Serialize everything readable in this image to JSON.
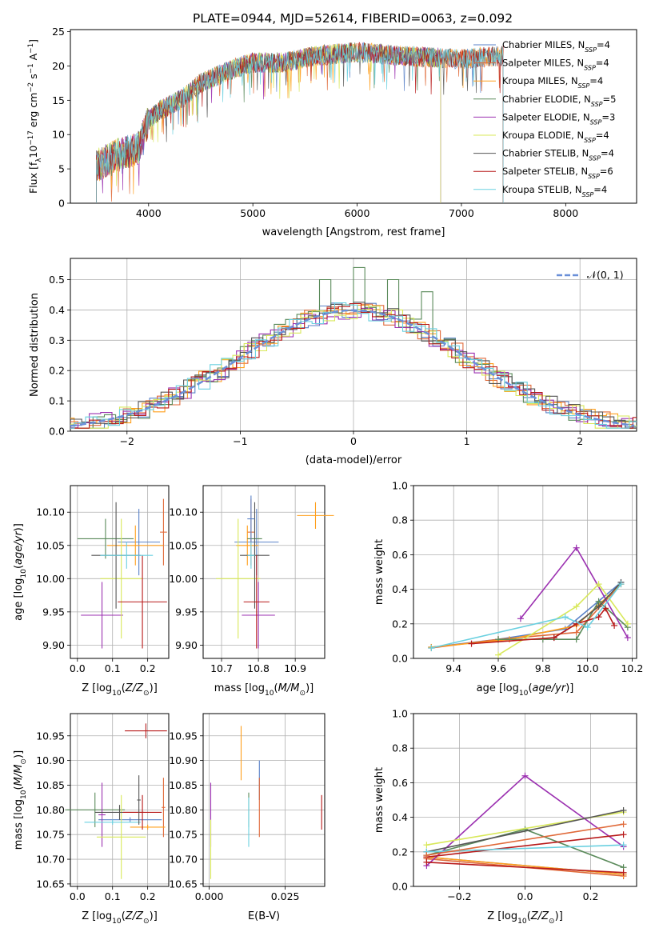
{
  "figure_title": "PLATE=0944, MJD=52614, FIBERID=0063, z=0.092",
  "colors": {
    "Chabrier MILES": "#5a82c8",
    "Salpeter MILES": "#e06a3a",
    "Kroupa MILES": "#ff9f1c",
    "Chabrier ELODIE": "#5a8a5a",
    "Salpeter ELODIE": "#9b30b0",
    "Kroupa ELODIE": "#d8e85a",
    "Chabrier STELIB": "#555555",
    "Salpeter STELIB": "#b81a1a",
    "Kroupa STELIB": "#6ad0e0"
  },
  "legend_labels": [
    "Chabrier MILES, N_SSP=4",
    "Salpeter MILES, N_SSP=4",
    "Kroupa MILES, N_SSP=4",
    "Chabrier ELODIE, N_SSP=5",
    "Salpeter ELODIE, N_SSP=3",
    "Kroupa ELODIE, N_SSP=4",
    "Chabrier STELIB, N_SSP=4",
    "Salpeter STELIB, N_SSP=6",
    "Kroupa STELIB, N_SSP=4"
  ],
  "normal_legend": "𝒩(0, 1)",
  "chart_data": [
    {
      "id": "spectrum",
      "type": "line",
      "xlabel": "wavelength [Angstrom, rest frame]",
      "ylabel": "Flux [f_λ 10^-17 erg cm^-2 s^-1 A^-1]",
      "xlim": [
        3250,
        8680
      ],
      "ylim": [
        0,
        25.3
      ],
      "xticks": [
        4000,
        5000,
        6000,
        7000,
        8000
      ],
      "yticks": [
        0,
        5,
        10,
        15,
        20,
        25
      ],
      "grid": false,
      "legend_position": "right",
      "continuum": {
        "x": [
          3500,
          3700,
          3900,
          4000,
          4100,
          4300,
          4500,
          4800,
          5000,
          5300,
          5600,
          6000,
          6400,
          7000,
          7400
        ],
        "y": [
          5.5,
          7.0,
          8.0,
          12.0,
          13.5,
          15.0,
          17.5,
          19.5,
          20.5,
          20.5,
          21.5,
          22.0,
          21.5,
          21.0,
          21.5
        ]
      },
      "series_x_range": {
        "Chabrier MILES": [
          3500,
          7400
        ],
        "Salpeter MILES": [
          3500,
          7400
        ],
        "Kroupa MILES": [
          3500,
          7400
        ],
        "Chabrier ELODIE": [
          3500,
          6800
        ],
        "Salpeter ELODIE": [
          3500,
          6800
        ],
        "Kroupa ELODIE": [
          3500,
          6800
        ],
        "Chabrier STELIB": [
          3500,
          7400
        ],
        "Salpeter STELIB": [
          3500,
          7400
        ],
        "Kroupa STELIB": [
          3500,
          7400
        ]
      }
    },
    {
      "id": "residuals",
      "type": "histogram",
      "xlabel": "(data-model)/error",
      "ylabel": "Normed distribution",
      "xlim": [
        -2.5,
        2.5
      ],
      "ylim": [
        0,
        0.57
      ],
      "xticks": [
        -2,
        -1,
        0,
        1,
        2
      ],
      "yticks": [
        0.0,
        0.1,
        0.2,
        0.3,
        0.4,
        0.5
      ],
      "grid": true,
      "bin_width": 0.1,
      "peak_bins": {
        "-0.2": 0.5,
        "0.1": 0.54,
        "0.4": 0.5,
        "0.7": 0.46
      },
      "normal_curve": {
        "mean": 0,
        "sigma": 1
      }
    },
    {
      "id": "age_vs_Z",
      "type": "errorbar",
      "xlabel": "Z [log10(Z/Z_⊙)]",
      "ylabel": "age [log10(age/yr)]",
      "xlim": [
        -0.02,
        0.26
      ],
      "ylim": [
        9.88,
        10.14
      ],
      "xticks": [
        0.0,
        0.1,
        0.2
      ],
      "xtick_labels": [
        "0.0",
        "0.1",
        "0.2"
      ],
      "yticks": [
        9.9,
        9.95,
        10.0,
        10.05,
        10.1
      ],
      "ytick_labels": [
        "9.90",
        "9.95",
        "10.00",
        "10.05",
        "10.10"
      ],
      "grid": true,
      "points": [
        {
          "s": "Chabrier MILES",
          "x": 0.175,
          "y": 10.055,
          "xerr": 0.06,
          "yerr": 0.05
        },
        {
          "s": "Salpeter MILES",
          "x": 0.245,
          "y": 10.07,
          "xerr": 0.01,
          "yerr": 0.05
        },
        {
          "s": "Kroupa MILES",
          "x": 0.165,
          "y": 10.05,
          "xerr": 0.08,
          "yerr": 0.03
        },
        {
          "s": "Chabrier ELODIE",
          "x": 0.08,
          "y": 10.06,
          "xerr": 0.08,
          "yerr": 0.03
        },
        {
          "s": "Salpeter ELODIE",
          "x": 0.07,
          "y": 9.945,
          "xerr": 0.06,
          "yerr": 0.05
        },
        {
          "s": "Kroupa ELODIE",
          "x": 0.125,
          "y": 10.0,
          "xerr": 0.06,
          "yerr": 0.09
        },
        {
          "s": "Chabrier STELIB",
          "x": 0.11,
          "y": 10.035,
          "xerr": 0.07,
          "yerr": 0.08
        },
        {
          "s": "Salpeter STELIB",
          "x": 0.185,
          "y": 9.965,
          "xerr": 0.07,
          "yerr": 0.07
        },
        {
          "s": "Kroupa STELIB",
          "x": 0.14,
          "y": 10.035,
          "xerr": 0.075,
          "yerr": 0.02
        }
      ]
    },
    {
      "id": "age_vs_mass",
      "type": "errorbar",
      "xlabel": "mass [log10(M/M_⊙)]",
      "xlim": [
        10.65,
        10.98
      ],
      "ylim": [
        9.88,
        10.14
      ],
      "xticks": [
        10.7,
        10.8,
        10.9
      ],
      "xtick_labels": [
        "10.7",
        "10.8",
        "10.9"
      ],
      "yticks": [
        9.9,
        9.95,
        10.0,
        10.05,
        10.1
      ],
      "ytick_labels": [
        "9.90",
        "9.95",
        "10.00",
        "10.05",
        "10.10"
      ],
      "grid": true,
      "points": [
        {
          "s": "Chabrier MILES",
          "x": 10.795,
          "y": 10.055,
          "xerr": 0.06,
          "yerr": 0.05
        },
        {
          "s": "Salpeter MILES",
          "x": 10.78,
          "y": 10.07,
          "xerr": 0.01,
          "yerr": 0.05
        },
        {
          "s": "Kroupa MILES",
          "x": 10.77,
          "y": 10.05,
          "xerr": 0.03,
          "yerr": 0.03
        },
        {
          "s": "Chabrier ELODIE",
          "x": 10.79,
          "y": 10.06,
          "xerr": 0.02,
          "yerr": 0.03
        },
        {
          "s": "Salpeter ELODIE",
          "x": 10.8,
          "y": 9.945,
          "xerr": 0.045,
          "yerr": 0.05
        },
        {
          "s": "Kroupa ELODIE",
          "x": 10.745,
          "y": 10.0,
          "xerr": 0.06,
          "yerr": 0.09
        },
        {
          "s": "Chabrier STELIB",
          "x": 10.79,
          "y": 10.035,
          "xerr": 0.04,
          "yerr": 0.08
        },
        {
          "s": "Salpeter STELIB",
          "x": 10.795,
          "y": 9.965,
          "xerr": 0.035,
          "yerr": 0.07
        },
        {
          "s": "Kroupa STELIB",
          "x": 10.78,
          "y": 10.035,
          "xerr": 0.01,
          "yerr": 0.02
        },
        {
          "s": "Kroupa MILES",
          "x": 10.955,
          "y": 10.095,
          "xerr": 0.05,
          "yerr": 0.02
        },
        {
          "s": "Chabrier MILES",
          "x": 10.78,
          "y": 10.09,
          "xerr": 0.01,
          "yerr": 0.035
        }
      ]
    },
    {
      "id": "weight_vs_age",
      "type": "line",
      "xlabel": "age [log10(age/yr)]",
      "ylabel": "mass weight",
      "xlim": [
        9.22,
        10.22
      ],
      "ylim": [
        0,
        1.0
      ],
      "xticks": [
        9.4,
        9.6,
        9.8,
        10.0,
        10.2
      ],
      "xtick_labels": [
        "9.4",
        "9.6",
        "9.8",
        "10.0",
        "10.2"
      ],
      "yticks": [
        0.0,
        0.2,
        0.4,
        0.6,
        0.8,
        1.0
      ],
      "ytick_labels": [
        "0.0",
        "0.2",
        "0.4",
        "0.6",
        "0.8",
        "1.0"
      ],
      "grid": true,
      "series": [
        {
          "name": "Chabrier MILES",
          "x": [
            9.3,
            9.6,
            9.9,
            10.15
          ],
          "y": [
            0.065,
            0.11,
            0.17,
            0.44
          ]
        },
        {
          "name": "Salpeter MILES",
          "x": [
            9.3,
            9.6,
            9.95,
            10.15
          ],
          "y": [
            0.06,
            0.11,
            0.15,
            0.43
          ]
        },
        {
          "name": "Kroupa MILES",
          "x": [
            9.3,
            9.65,
            9.95,
            10.15
          ],
          "y": [
            0.065,
            0.11,
            0.19,
            0.43
          ]
        },
        {
          "name": "Chabrier ELODIE",
          "x": [
            9.6,
            9.8,
            9.95,
            10.05,
            10.18
          ],
          "y": [
            0.11,
            0.11,
            0.11,
            0.33,
            0.18
          ]
        },
        {
          "name": "Salpeter ELODIE",
          "x": [
            9.7,
            9.95,
            10.18
          ],
          "y": [
            0.23,
            0.64,
            0.12
          ]
        },
        {
          "name": "Kroupa ELODIE",
          "x": [
            9.6,
            9.95,
            10.05,
            10.18
          ],
          "y": [
            0.02,
            0.3,
            0.43,
            0.2
          ]
        },
        {
          "name": "Chabrier STELIB",
          "x": [
            9.85,
            9.95,
            10.05,
            10.15
          ],
          "y": [
            0.12,
            0.2,
            0.3,
            0.44
          ]
        },
        {
          "name": "Salpeter STELIB",
          "x": [
            9.48,
            9.85,
            9.95,
            10.05,
            10.08,
            10.12
          ],
          "y": [
            0.085,
            0.12,
            0.2,
            0.24,
            0.29,
            0.19
          ]
        },
        {
          "name": "Kroupa STELIB",
          "x": [
            9.3,
            9.9,
            10.0,
            10.15
          ],
          "y": [
            0.06,
            0.24,
            0.18,
            0.43
          ]
        }
      ]
    },
    {
      "id": "mass_vs_Z",
      "type": "errorbar",
      "xlabel": "Z [log10(Z/Z_⊙)]",
      "ylabel": "mass [log10(M/M_⊙)]",
      "xlim": [
        -0.02,
        0.26
      ],
      "ylim": [
        10.645,
        10.995
      ],
      "xticks": [
        0.0,
        0.1,
        0.2
      ],
      "xtick_labels": [
        "0.0",
        "0.1",
        "0.2"
      ],
      "yticks": [
        10.65,
        10.7,
        10.75,
        10.8,
        10.85,
        10.9,
        10.95
      ],
      "ytick_labels": [
        "10.65",
        "10.70",
        "10.75",
        "10.80",
        "10.85",
        "10.90",
        "10.95"
      ],
      "grid": true,
      "points": [
        {
          "s": "Chabrier MILES",
          "x": 0.15,
          "y": 10.78,
          "xerr": 0.09,
          "yerr": 0.005
        },
        {
          "s": "Salpeter MILES",
          "x": 0.245,
          "y": 10.805,
          "xerr": 0.005,
          "yerr": 0.06
        },
        {
          "s": "Kroupa MILES",
          "x": 0.2,
          "y": 10.765,
          "xerr": 0.05,
          "yerr": 0.005
        },
        {
          "s": "Chabrier ELODIE",
          "x": 0.05,
          "y": 10.8,
          "xerr": 0.085,
          "yerr": 0.035
        },
        {
          "s": "Salpeter ELODIE",
          "x": 0.07,
          "y": 10.79,
          "xerr": 0.01,
          "yerr": 0.065
        },
        {
          "s": "Kroupa ELODIE",
          "x": 0.125,
          "y": 10.745,
          "xerr": 0.07,
          "yerr": 0.085
        },
        {
          "s": "Chabrier STELIB",
          "x": 0.12,
          "y": 10.795,
          "xerr": 0.07,
          "yerr": 0.015
        },
        {
          "s": "Salpeter STELIB",
          "x": 0.185,
          "y": 10.795,
          "xerr": 0.055,
          "yerr": 0.035
        },
        {
          "s": "Kroupa STELIB",
          "x": 0.1,
          "y": 10.775,
          "xerr": 0.08,
          "yerr": 0.005
        },
        {
          "s": "Chabrier STELIB",
          "x": 0.175,
          "y": 10.82,
          "xerr": 0.005,
          "yerr": 0.05
        },
        {
          "s": "Salpeter STELIB",
          "x": 0.195,
          "y": 10.96,
          "xerr": 0.06,
          "yerr": 0.015
        }
      ]
    },
    {
      "id": "mass_vs_ebv",
      "type": "errorbar",
      "xlabel": "E(B-V)",
      "xlim": [
        -0.002,
        0.038
      ],
      "ylim": [
        10.645,
        10.995
      ],
      "xticks": [
        0.0,
        0.025
      ],
      "xtick_labels": [
        "0.000",
        "0.025"
      ],
      "yticks": [
        10.65,
        10.7,
        10.75,
        10.8,
        10.85,
        10.9,
        10.95
      ],
      "ytick_labels": [
        "10.65",
        "10.70",
        "10.75",
        "10.80",
        "10.85",
        "10.90",
        "10.95"
      ],
      "grid": true,
      "points": [
        {
          "s": "Chabrier MILES",
          "x": 0.0165,
          "y": 10.86,
          "xerr": 0,
          "yerr": 0.04
        },
        {
          "s": "Salpeter MILES",
          "x": 0.0165,
          "y": 10.805,
          "xerr": 0,
          "yerr": 0.06
        },
        {
          "s": "Chabrier ELODIE",
          "x": 0.013,
          "y": 10.8,
          "xerr": 0,
          "yerr": 0.035
        },
        {
          "s": "Salpeter ELODIE",
          "x": 0.0005,
          "y": 10.79,
          "xerr": 0,
          "yerr": 0.065
        },
        {
          "s": "Kroupa ELODIE",
          "x": 0.0005,
          "y": 10.72,
          "xerr": 0,
          "yerr": 0.06
        },
        {
          "s": "Kroupa STELIB",
          "x": 0.013,
          "y": 10.775,
          "xerr": 0,
          "yerr": 0.05
        },
        {
          "s": "Salpeter STELIB",
          "x": 0.037,
          "y": 10.795,
          "xerr": 0,
          "yerr": 0.035
        },
        {
          "s": "Kroupa MILES",
          "x": 0.0105,
          "y": 10.915,
          "xerr": 0,
          "yerr": 0.055
        }
      ]
    },
    {
      "id": "weight_vs_Z",
      "type": "line",
      "xlabel": "Z [log10(Z/Z_⊙)]",
      "ylabel": "mass weight",
      "xlim": [
        -0.34,
        0.34
      ],
      "ylim": [
        0,
        1.0
      ],
      "xticks": [
        -0.2,
        0.0,
        0.2
      ],
      "xtick_labels": [
        "−0.2",
        "0.0",
        "0.2"
      ],
      "yticks": [
        0.0,
        0.2,
        0.4,
        0.6,
        0.8,
        1.0
      ],
      "ytick_labels": [
        "0.0",
        "0.2",
        "0.4",
        "0.6",
        "0.8",
        "1.0"
      ],
      "grid": true,
      "series": [
        {
          "name": "Chabrier MILES",
          "x": [
            -0.3,
            0.3
          ],
          "y": [
            0.17,
            0.07
          ]
        },
        {
          "name": "Salpeter MILES",
          "x": [
            -0.3,
            0.3
          ],
          "y": [
            0.16,
            0.06
          ]
        },
        {
          "name": "Kroupa MILES",
          "x": [
            -0.3,
            0.3
          ],
          "y": [
            0.17,
            0.07
          ]
        },
        {
          "name": "Chabrier ELODIE",
          "x": [
            -0.3,
            0.0,
            0.3
          ],
          "y": [
            0.18,
            0.33,
            0.11
          ]
        },
        {
          "name": "Salpeter ELODIE",
          "x": [
            -0.3,
            0.0,
            0.3
          ],
          "y": [
            0.12,
            0.64,
            0.23
          ]
        },
        {
          "name": "Kroupa ELODIE",
          "x": [
            -0.3,
            0.3
          ],
          "y": [
            0.24,
            0.43
          ]
        },
        {
          "name": "Chabrier STELIB",
          "x": [
            -0.3,
            0.3
          ],
          "y": [
            0.2,
            0.44
          ]
        },
        {
          "name": "Salpeter STELIB",
          "x": [
            -0.3,
            0.3
          ],
          "y": [
            0.17,
            0.3
          ]
        },
        {
          "name": "Kroupa STELIB",
          "x": [
            -0.3,
            0.3
          ],
          "y": [
            0.2,
            0.24
          ]
        },
        {
          "name": "Salpeter STELIB",
          "x": [
            -0.3,
            0.3
          ],
          "y": [
            0.14,
            0.08
          ]
        },
        {
          "name": "Salpeter MILES",
          "x": [
            -0.3,
            0.3
          ],
          "y": [
            0.18,
            0.36
          ]
        }
      ]
    }
  ]
}
